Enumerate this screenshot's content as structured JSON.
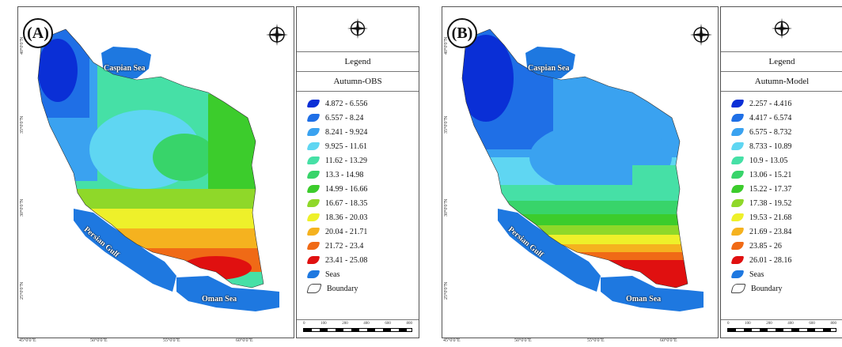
{
  "panels": [
    {
      "label": "(A)",
      "legend_title": "Legend",
      "legend_subtitle": "Autumn-OBS",
      "classes": [
        {
          "range": "4.872 - 6.556",
          "color": "#0a2fd6"
        },
        {
          "range": "6.557 - 8.24",
          "color": "#1f6fe6"
        },
        {
          "range": "8.241 - 9.924",
          "color": "#3aa2f0"
        },
        {
          "range": "9.925 - 11.61",
          "color": "#5fd6f2"
        },
        {
          "range": "11.62 - 13.29",
          "color": "#46e0a6"
        },
        {
          "range": "13.3 - 14.98",
          "color": "#38d46a"
        },
        {
          "range": "14.99 - 16.66",
          "color": "#3ccc2c"
        },
        {
          "range": "16.67 - 18.35",
          "color": "#8fd829"
        },
        {
          "range": "18.36 - 20.03",
          "color": "#eef02a"
        },
        {
          "range": "20.04 - 21.71",
          "color": "#f5b21f"
        },
        {
          "range": "21.72 - 23.4",
          "color": "#f06a16"
        },
        {
          "range": "23.41 - 25.08",
          "color": "#e01010"
        }
      ]
    },
    {
      "label": "(B)",
      "legend_title": "Legend",
      "legend_subtitle": "Autumn-Model",
      "classes": [
        {
          "range": "2.257 - 4.416",
          "color": "#0a2fd6"
        },
        {
          "range": "4.417 - 6.574",
          "color": "#1f6fe6"
        },
        {
          "range": "6.575 - 8.732",
          "color": "#3aa2f0"
        },
        {
          "range": "8.733 - 10.89",
          "color": "#5fd6f2"
        },
        {
          "range": "10.9 - 13.05",
          "color": "#46e0a6"
        },
        {
          "range": "13.06 - 15.21",
          "color": "#38d46a"
        },
        {
          "range": "15.22 - 17.37",
          "color": "#3ccc2c"
        },
        {
          "range": "17.38 - 19.52",
          "color": "#8fd829"
        },
        {
          "range": "19.53 - 21.68",
          "color": "#eef02a"
        },
        {
          "range": "21.69 - 23.84",
          "color": "#f5b21f"
        },
        {
          "range": "23.85 - 26",
          "color": "#f06a16"
        },
        {
          "range": "26.01 - 28.16",
          "color": "#e01010"
        }
      ]
    }
  ],
  "seas_label": "Seas",
  "seas_color": "#1e78e0",
  "boundary_label": "Boundary",
  "sea_names": {
    "caspian": "Caspian Sea",
    "persian_gulf": "Persian Gulf",
    "oman": "Oman Sea"
  },
  "lat_labels": [
    "40°0'0\"N",
    "35°0'0\"N",
    "30°0'0\"N",
    "25°0'0\"N"
  ],
  "lon_labels": [
    "45°0'0\"E",
    "50°0'0\"E",
    "55°0'0\"E",
    "60°0'0\"E"
  ],
  "scale_ticks": [
    "0",
    "100",
    "200",
    "400",
    "600",
    "800"
  ],
  "north_label": "N"
}
